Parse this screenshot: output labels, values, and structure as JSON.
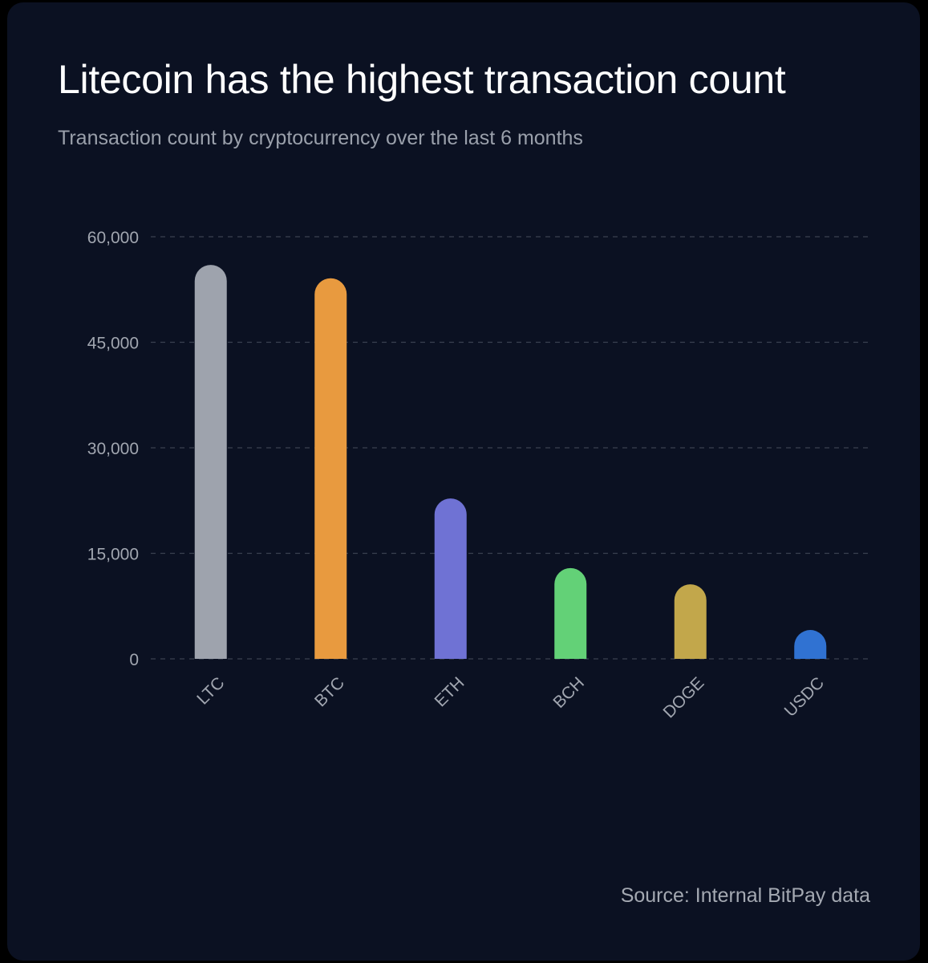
{
  "chart_data": {
    "type": "bar",
    "title": "Litecoin has the highest transaction count",
    "subtitle": "Transaction count by cryptocurrency over the last 6 months",
    "source": "Source: Internal BitPay data",
    "categories": [
      "LTC",
      "BTC",
      "ETH",
      "BCH",
      "DOGE",
      "USDC"
    ],
    "values": [
      56000,
      54100,
      22800,
      12900,
      10600,
      4100
    ],
    "colors": [
      "#9ea3ad",
      "#e89a3f",
      "#6f72d4",
      "#63d177",
      "#c2a74b",
      "#3072d2"
    ],
    "ylim": [
      0,
      60000
    ],
    "yticks": [
      0,
      15000,
      30000,
      45000,
      60000
    ],
    "ytick_labels": [
      "0",
      "15,000",
      "30,000",
      "45,000",
      "60,000"
    ],
    "grid": true,
    "xlabel": "",
    "ylabel": ""
  },
  "colors": {
    "background": "#0b1122",
    "gridline": "#3a4150",
    "text_primary": "#ffffff",
    "text_secondary": "#9aa0ab"
  }
}
